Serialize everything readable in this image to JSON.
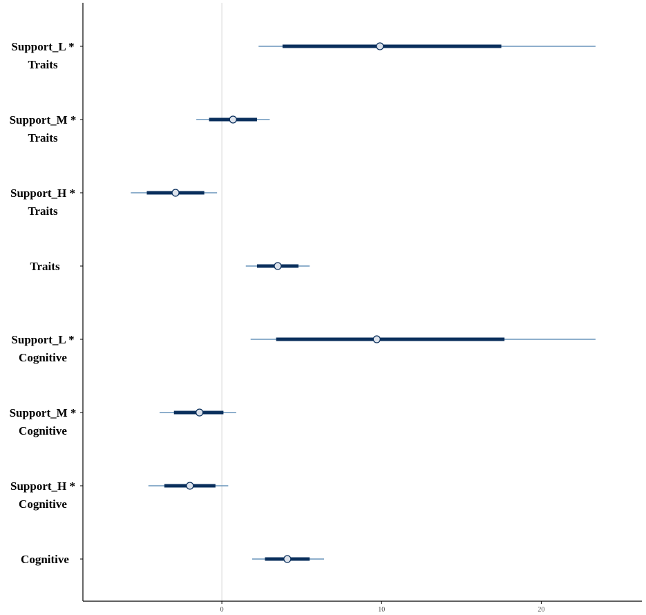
{
  "chart_data": {
    "type": "forest",
    "title": "",
    "xlabel": "",
    "ylabel": "",
    "xlim": [
      -8.7,
      26.3
    ],
    "grid": false,
    "reference_line_x": 0,
    "xticks": [
      0,
      10,
      20
    ],
    "xtick_labels": [
      "0",
      "10",
      "20"
    ],
    "colors": {
      "outer_interval": "#4a7fae",
      "inner_interval": "#0a2f5c",
      "point_fill": "#dde3ec",
      "point_stroke": "#0a2f5c",
      "reference_line": "#d4d4d4",
      "axis": "#000000"
    },
    "terms": [
      {
        "label_lines": [
          "Support_L *",
          "Traits"
        ],
        "estimate": 9.9,
        "inner": [
          3.8,
          17.5
        ],
        "outer": [
          2.3,
          23.4
        ]
      },
      {
        "label_lines": [
          "Support_M *",
          "Traits"
        ],
        "estimate": 0.7,
        "inner": [
          -0.8,
          2.2
        ],
        "outer": [
          -1.6,
          3.0
        ]
      },
      {
        "label_lines": [
          "Support_H *",
          "Traits"
        ],
        "estimate": -2.9,
        "inner": [
          -4.7,
          -1.1
        ],
        "outer": [
          -5.7,
          -0.3
        ]
      },
      {
        "label_lines": [
          "Traits"
        ],
        "estimate": 3.5,
        "inner": [
          2.2,
          4.8
        ],
        "outer": [
          1.5,
          5.5
        ]
      },
      {
        "label_lines": [
          "Support_L *",
          "Cognitive"
        ],
        "estimate": 9.7,
        "inner": [
          3.4,
          17.7
        ],
        "outer": [
          1.8,
          23.4
        ]
      },
      {
        "label_lines": [
          "Support_M *",
          "Cognitive"
        ],
        "estimate": -1.4,
        "inner": [
          -3.0,
          0.1
        ],
        "outer": [
          -3.9,
          0.9
        ]
      },
      {
        "label_lines": [
          "Support_H *",
          "Cognitive"
        ],
        "estimate": -2.0,
        "inner": [
          -3.6,
          -0.4
        ],
        "outer": [
          -4.6,
          0.4
        ]
      },
      {
        "label_lines": [
          "Cognitive"
        ],
        "estimate": 4.1,
        "inner": [
          2.7,
          5.5
        ],
        "outer": [
          1.9,
          6.4
        ]
      }
    ]
  }
}
